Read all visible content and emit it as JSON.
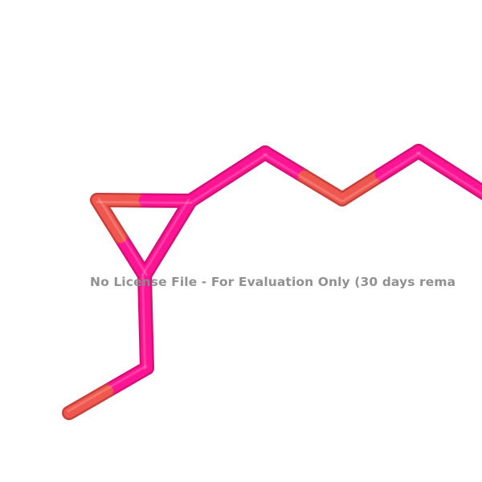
{
  "watermark": {
    "text": "No License File - For Evaluation Only (30 days rema"
  },
  "colors": {
    "carbon": "#ff1493",
    "carbon_shade": "#d80f78",
    "oxygen": "#f0584f",
    "oxygen_shade": "#c8403a",
    "background": "#ffffff",
    "watermark": "#8c8c8c"
  },
  "molecule": {
    "style": "sticks",
    "atom_types": [
      "C",
      "O"
    ]
  }
}
